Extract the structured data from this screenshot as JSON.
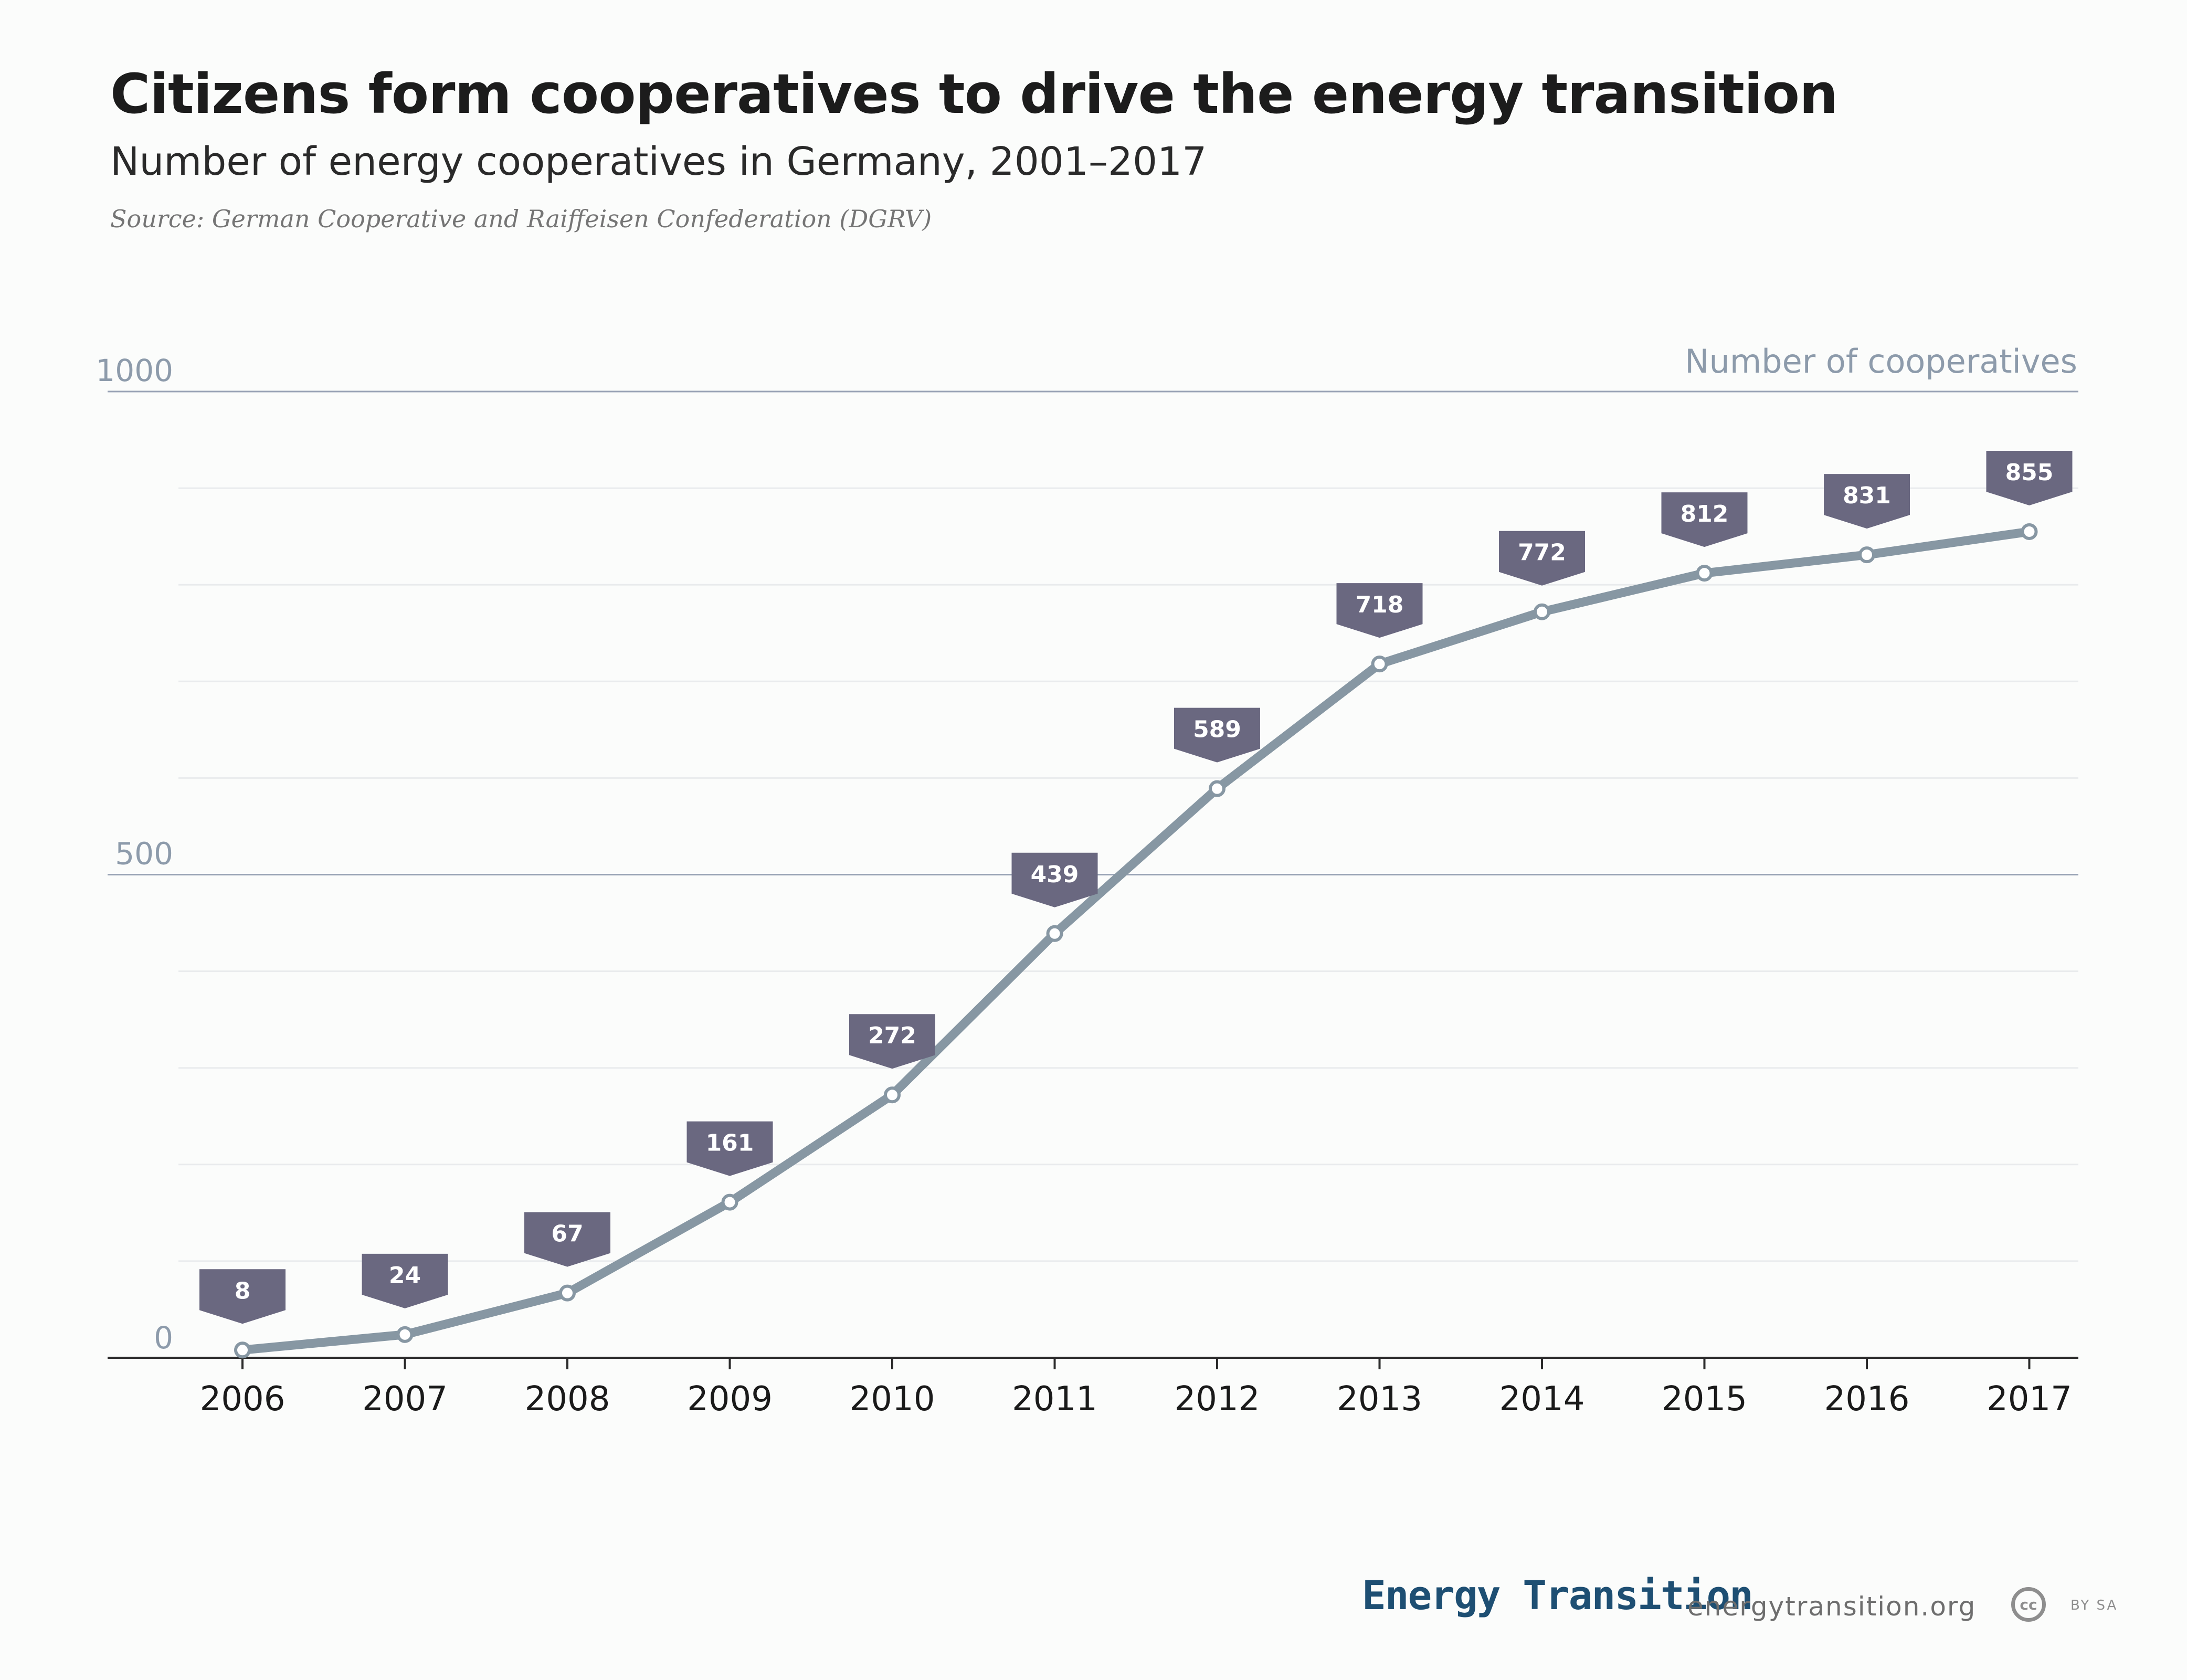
{
  "header": {
    "title": "Citizens form cooperatives to drive the energy transition",
    "subtitle": "Number of energy cooperatives in Germany, 2001–2017",
    "source": "Source: German Cooperative and Raiffeisen Confederation (DGRV)"
  },
  "chart_data": {
    "type": "line",
    "title": "Citizens form cooperatives to drive the energy transition",
    "subtitle": "Number of energy cooperatives in Germany, 2001–2017",
    "ylabel": "Number of cooperatives",
    "xlabel": "",
    "x": [
      "2006",
      "2007",
      "2008",
      "2009",
      "2010",
      "2011",
      "2012",
      "2013",
      "2014",
      "2015",
      "2016",
      "2017"
    ],
    "values": [
      8,
      24,
      67,
      161,
      272,
      439,
      589,
      718,
      772,
      812,
      831,
      855
    ],
    "ylim": [
      0,
      1000
    ],
    "yticks": [
      "0",
      "500",
      "1000"
    ],
    "grid": true,
    "data_labels": true,
    "colors": {
      "line": "#8797a3",
      "label_box": "#6a6880",
      "label_text": "#ffffff",
      "major_grid": "#99a3b5",
      "minor_grid": "#e9ebed",
      "axis": "#2b2b2b",
      "tick_label": "#1a1a1a",
      "y_tick_label": "#8d9bab"
    }
  },
  "footer": {
    "brand": "Energy Transition",
    "url": "energytransition.org",
    "license_badge": "cc",
    "license_text": "BY SA",
    "license_icon": "creative-commons-icon"
  }
}
